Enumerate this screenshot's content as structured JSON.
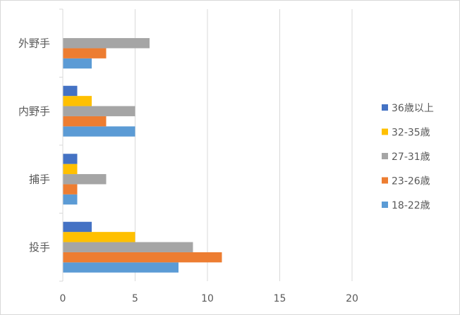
{
  "chart_data": {
    "type": "bar",
    "orientation": "horizontal",
    "categories": [
      "投手",
      "捕手",
      "内野手",
      "外野手"
    ],
    "series": [
      {
        "name": "18-22歳",
        "color": "#5b9bd5",
        "values": [
          8,
          1,
          5,
          2
        ]
      },
      {
        "name": "23-26歳",
        "color": "#ed7d31",
        "values": [
          11,
          1,
          3,
          3
        ]
      },
      {
        "name": "27-31歳",
        "color": "#a5a5a5",
        "values": [
          9,
          3,
          5,
          6
        ]
      },
      {
        "name": "32-35歳",
        "color": "#ffc000",
        "values": [
          5,
          1,
          2,
          0
        ]
      },
      {
        "name": "36歳以上",
        "color": "#4472c4",
        "values": [
          2,
          1,
          1,
          0
        ]
      }
    ],
    "xlim": [
      0,
      20
    ],
    "xticks": [
      "0",
      "5",
      "10",
      "15",
      "20"
    ],
    "grid": true,
    "legend_position": "right",
    "title": "",
    "xlabel": "",
    "ylabel": ""
  }
}
